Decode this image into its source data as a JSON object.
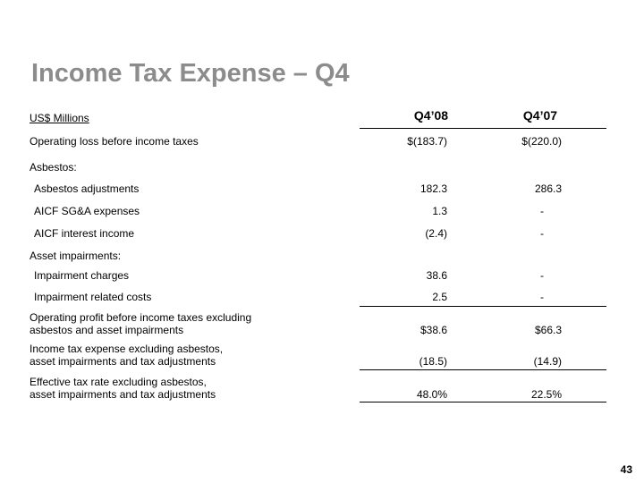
{
  "title": "Income Tax Expense – Q4",
  "table": {
    "header": [
      "US$ Millions",
      "Q4’08",
      "Q4’07"
    ],
    "rows": [
      [
        "Operating loss before income taxes",
        "$(183.7)",
        "$(220.0)"
      ],
      [
        "Asbestos:"
      ],
      [
        "Asbestos adjustments",
        "182.3",
        "286.3"
      ],
      [
        "AICF SG&A expenses",
        "1.3",
        "-"
      ],
      [
        "AICF interest income",
        "(2.4)",
        "-"
      ],
      [
        "Asset impairments:"
      ],
      [
        "Impairment charges",
        "38.6",
        "-"
      ],
      [
        "Impairment related costs",
        "2.5",
        "-"
      ],
      [
        "Operating profit before income taxes excluding\nasbestos and asset impairments",
        "$38.6",
        "$66.3"
      ],
      [
        "Income tax expense excluding asbestos,\nasset impairments and tax adjustments",
        "(18.5)",
        "(14.9)"
      ],
      [
        "Effective tax rate excluding asbestos,\nasset impairments and tax adjustments",
        "48.0%",
        "22.5%"
      ]
    ]
  },
  "page_number": "43"
}
